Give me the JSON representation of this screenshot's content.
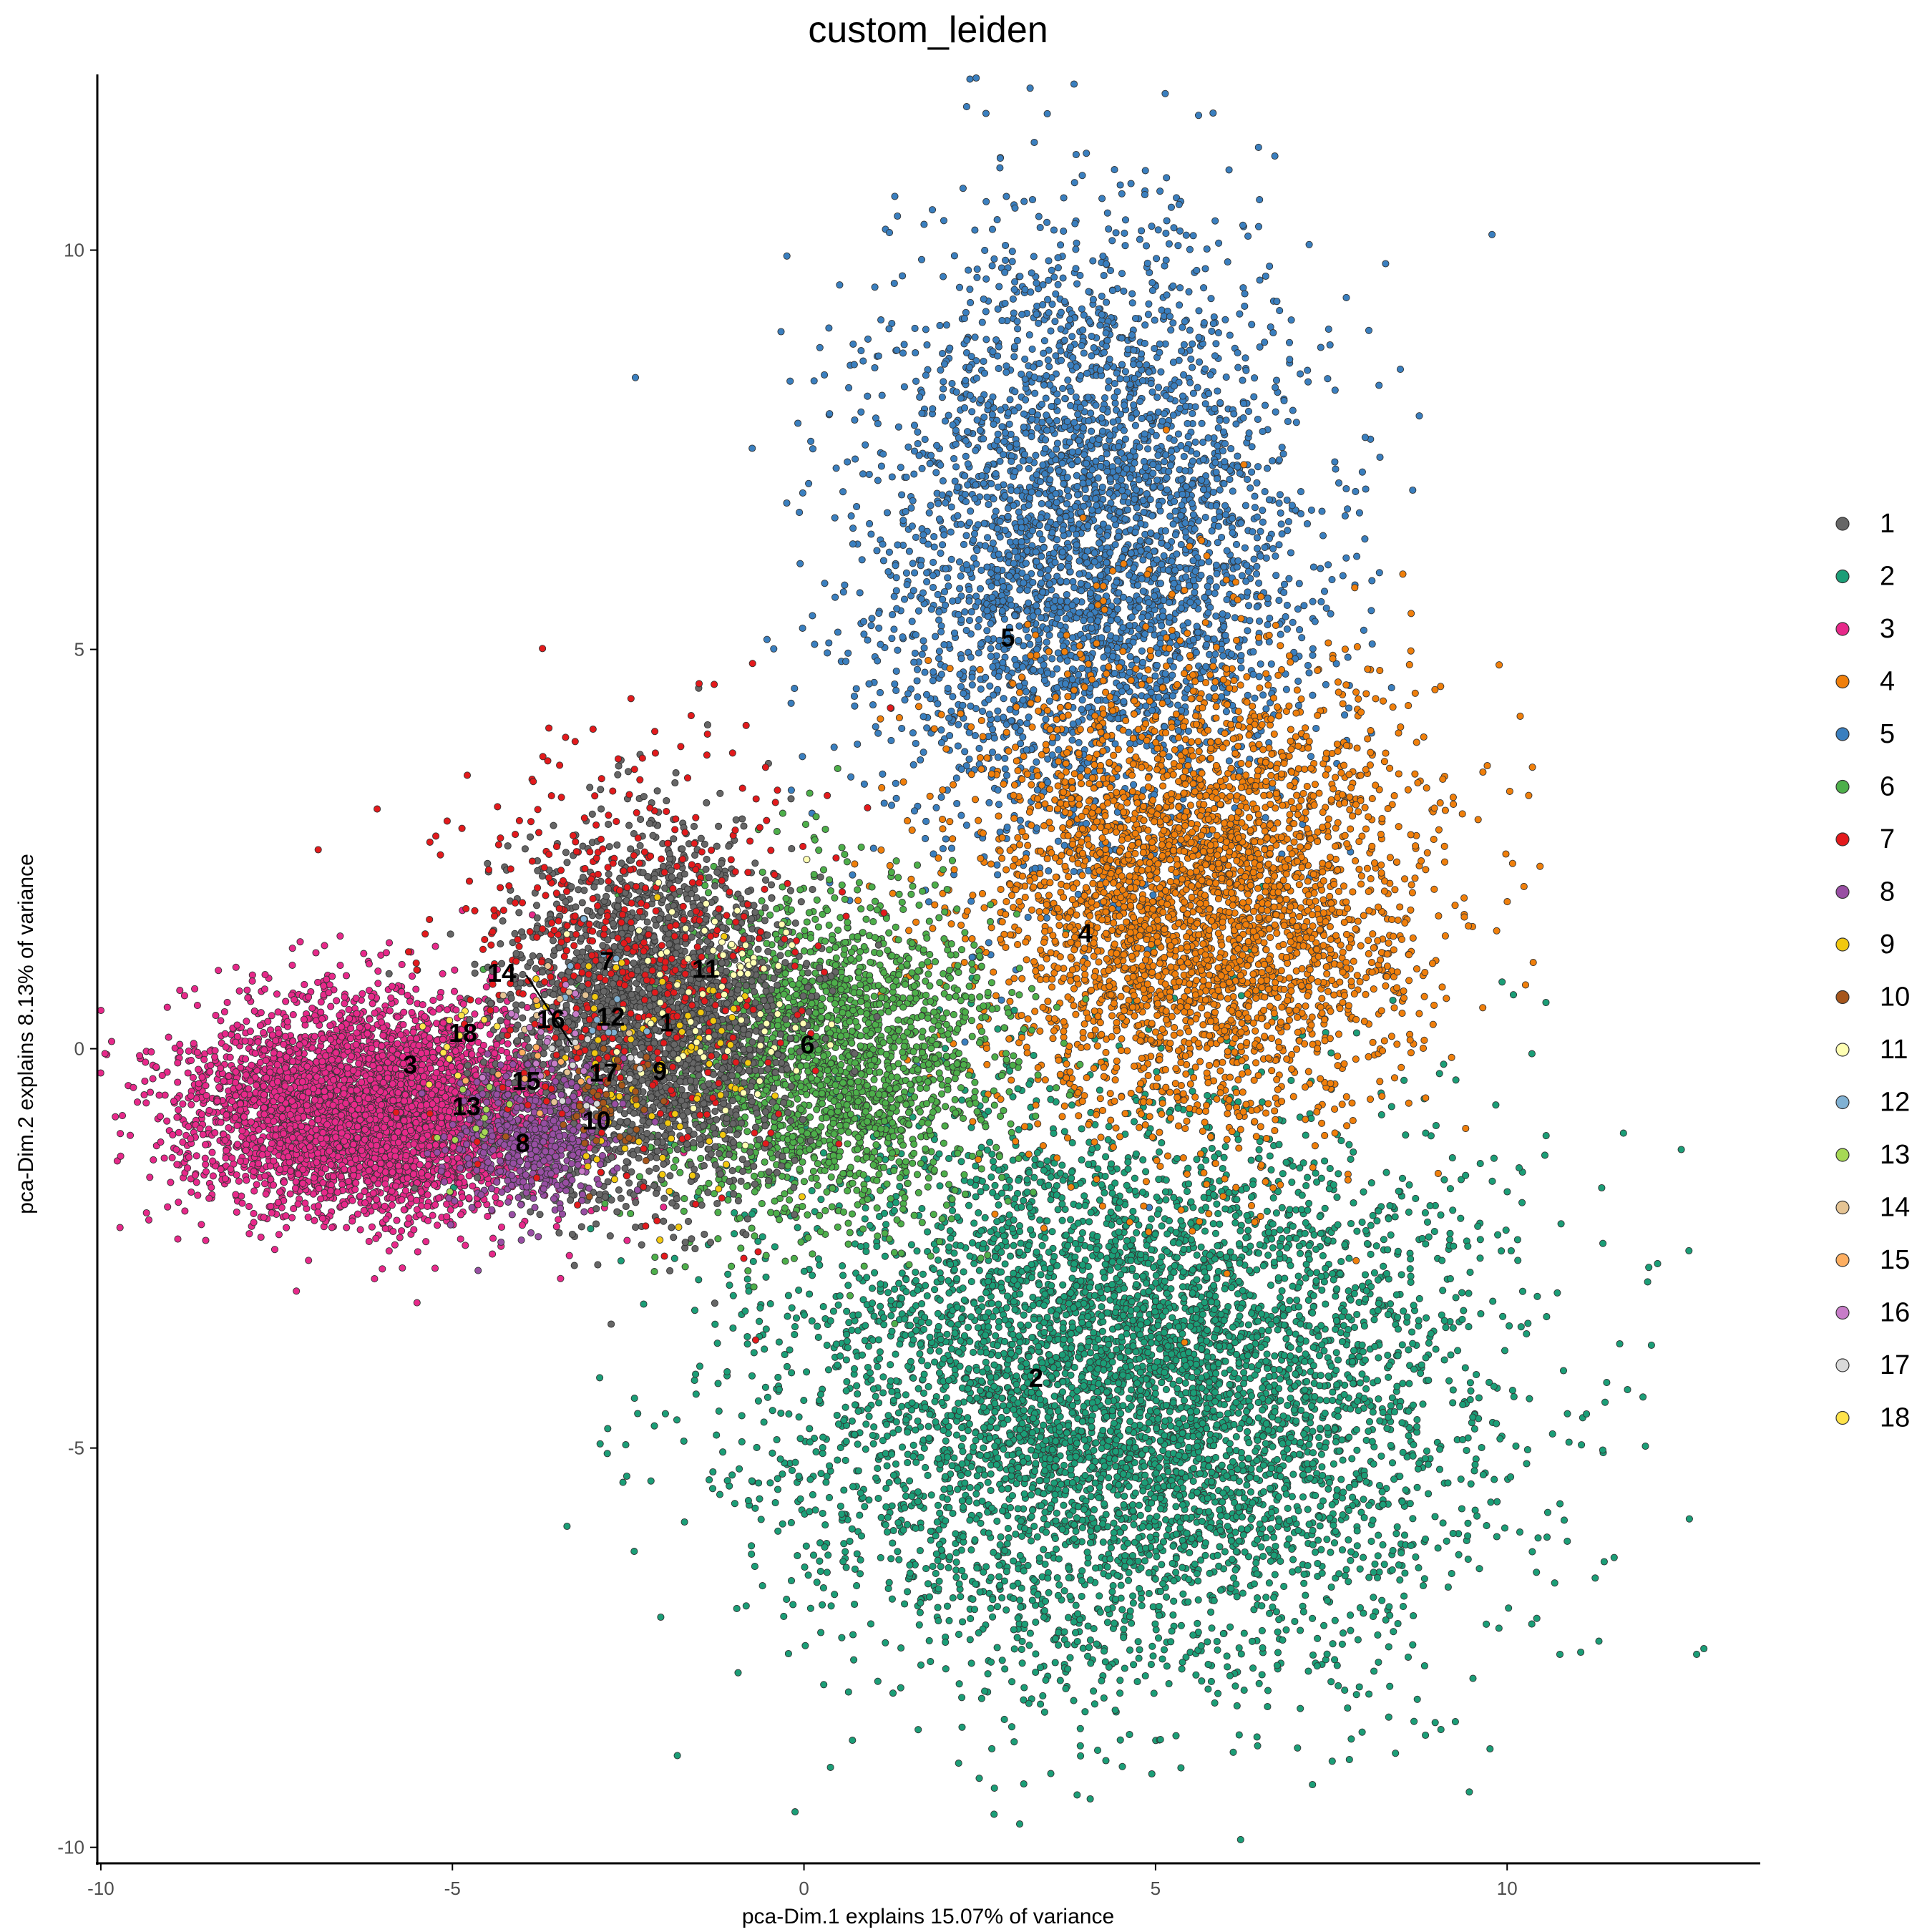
{
  "chart_data": {
    "type": "scatter",
    "title": "custom_leiden",
    "xlabel": "pca-Dim.1 explains 15.07% of variance",
    "ylabel": "pca-Dim.2 explains 8.13% of variance",
    "xlim": [
      -10.05,
      13.6
    ],
    "ylim": [
      -10.2,
      12.2
    ],
    "x_ticks": [
      -10,
      -5,
      0,
      5,
      10
    ],
    "x_tick_labels": [
      "-10",
      "-5",
      "0",
      "5",
      "10"
    ],
    "y_ticks": [
      -10,
      -5,
      0,
      5,
      10
    ],
    "y_tick_labels": [
      "-10",
      "-5",
      "0",
      "5",
      "10"
    ],
    "grid": false,
    "legend_position": "right",
    "point_outline": "#333333",
    "clusters": [
      {
        "name": "1",
        "color": "#666666",
        "label_x": -1.95,
        "label_y": 0.33,
        "cx": -2.2,
        "cy": 0.4,
        "sx": 0.95,
        "sy": 1.1,
        "n": 2600
      },
      {
        "name": "2",
        "color": "#1B9E77",
        "label_x": 3.3,
        "label_y": -4.12,
        "cx": 4.6,
        "cy": -4.3,
        "sx": 2.4,
        "sy": 1.75,
        "n": 6000
      },
      {
        "name": "3",
        "color": "#E7298A",
        "label_x": -5.6,
        "label_y": -0.2,
        "cx": -6.1,
        "cy": -0.75,
        "sx": 1.3,
        "sy": 0.65,
        "n": 4600
      },
      {
        "name": "4",
        "color": "#F07F0B",
        "label_x": 4.0,
        "label_y": 1.45,
        "cx": 5.6,
        "cy": 1.9,
        "sx": 1.55,
        "sy": 1.45,
        "n": 3600
      },
      {
        "name": "5",
        "color": "#3A7FBF",
        "label_x": 2.9,
        "label_y": 5.15,
        "cx": 4.0,
        "cy": 6.3,
        "sx": 1.5,
        "sy": 1.85,
        "n": 3800
      },
      {
        "name": "6",
        "color": "#4DAF4A",
        "label_x": 0.05,
        "label_y": 0.05,
        "cx": 0.3,
        "cy": -0.1,
        "sx": 1.2,
        "sy": 1.0,
        "n": 2300
      },
      {
        "name": "7",
        "color": "#E31A1C",
        "label_x": -2.8,
        "label_y": 1.1,
        "cx": -2.4,
        "cy": 1.2,
        "sx": 1.3,
        "sy": 1.3,
        "n": 500
      },
      {
        "name": "8",
        "color": "#984EA3",
        "label_x": -4.0,
        "label_y": -1.18,
        "cx": -3.9,
        "cy": -1.1,
        "sx": 0.55,
        "sy": 0.45,
        "n": 520
      },
      {
        "name": "9",
        "color": "#F2C80F",
        "label_x": -2.05,
        "label_y": -0.28,
        "cx": -2.0,
        "cy": -0.3,
        "sx": 0.7,
        "sy": 0.9,
        "n": 90
      },
      {
        "name": "10",
        "color": "#A6561C",
        "label_x": -2.95,
        "label_y": -0.9,
        "cx": -2.8,
        "cy": -0.8,
        "sx": 0.4,
        "sy": 0.35,
        "n": 45
      },
      {
        "name": "11",
        "color": "#FFFFB3",
        "label_x": -1.4,
        "label_y": 1.0,
        "cx": -1.3,
        "cy": 0.6,
        "sx": 0.7,
        "sy": 0.8,
        "n": 80
      },
      {
        "name": "12",
        "color": "#80B1D3",
        "label_x": -2.75,
        "label_y": 0.4,
        "cx": -2.7,
        "cy": 0.4,
        "sx": 0.4,
        "sy": 0.4,
        "n": 12
      },
      {
        "name": "13",
        "color": "#A6D854",
        "label_x": -4.8,
        "label_y": -0.72,
        "cx": -4.7,
        "cy": -0.7,
        "sx": 0.4,
        "sy": 0.4,
        "n": 12
      },
      {
        "name": "14",
        "color": "#E5C494",
        "label_x": -4.3,
        "label_y": 0.95,
        "cx": -3.4,
        "cy": 0.3,
        "sx": 0.4,
        "sy": 0.4,
        "n": 10
      },
      {
        "name": "15",
        "color": "#FDAE61",
        "label_x": -3.95,
        "label_y": -0.4,
        "cx": -3.9,
        "cy": -0.4,
        "sx": 0.4,
        "sy": 0.4,
        "n": 12
      },
      {
        "name": "16",
        "color": "#C77CC8",
        "label_x": -3.6,
        "label_y": 0.37,
        "cx": -3.7,
        "cy": 0.2,
        "sx": 0.5,
        "sy": 0.5,
        "n": 25
      },
      {
        "name": "17",
        "color": "#D9D9D9",
        "label_x": -2.85,
        "label_y": -0.3,
        "cx": -2.9,
        "cy": -0.3,
        "sx": 0.4,
        "sy": 0.4,
        "n": 12
      },
      {
        "name": "18",
        "color": "#FFE34A",
        "label_x": -4.85,
        "label_y": 0.2,
        "cx": -4.9,
        "cy": 0.2,
        "sx": 0.4,
        "sy": 0.4,
        "n": 12
      }
    ],
    "label_leader_line": {
      "cluster": "14",
      "from": [
        -3.95,
        0.92
      ],
      "to": [
        -3.3,
        0.05
      ]
    }
  }
}
